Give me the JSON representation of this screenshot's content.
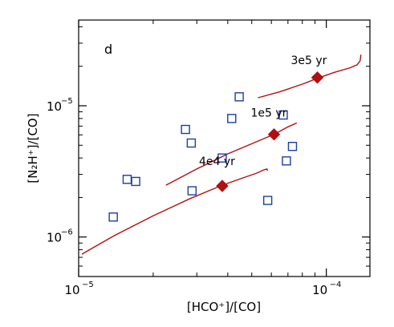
{
  "chart_data": {
    "type": "scatter",
    "panel_label": "d",
    "xlabel": "[HCO⁺]/[CO]",
    "ylabel": "[N₂H⁺]/[CO]",
    "x_scale": "log",
    "y_scale": "log",
    "xlim": [
      1e-05,
      0.00015
    ],
    "ylim": [
      5e-07,
      4.5e-05
    ],
    "x_ticks": [
      {
        "value": 1e-05,
        "mant": "10",
        "exp": "−5"
      },
      {
        "value": 0.0001,
        "mant": "10",
        "exp": "−4"
      }
    ],
    "y_ticks": [
      {
        "value": 1e-06,
        "mant": "10",
        "exp": "−6"
      },
      {
        "value": 1e-05,
        "mant": "10",
        "exp": "−5"
      }
    ],
    "grid": false,
    "observations": {
      "marker": "open-square",
      "color": "#1a3ea6",
      "points": [
        {
          "x": 1.38e-05,
          "y": 1.42e-06
        },
        {
          "x": 1.57e-05,
          "y": 2.75e-06
        },
        {
          "x": 1.7e-05,
          "y": 2.65e-06
        },
        {
          "x": 2.7e-05,
          "y": 6.6e-06
        },
        {
          "x": 2.85e-05,
          "y": 5.2e-06
        },
        {
          "x": 2.87e-05,
          "y": 2.25e-06
        },
        {
          "x": 3.8e-05,
          "y": 4e-06
        },
        {
          "x": 4.15e-05,
          "y": 8e-06
        },
        {
          "x": 4.45e-05,
          "y": 1.17e-05
        },
        {
          "x": 5.8e-05,
          "y": 1.9e-06
        },
        {
          "x": 6.7e-05,
          "y": 8.5e-06
        },
        {
          "x": 6.9e-05,
          "y": 3.8e-06
        },
        {
          "x": 7.3e-05,
          "y": 4.9e-06
        }
      ]
    },
    "model_tracks": {
      "color": "#b01010",
      "series": [
        {
          "name": "4e4 yr",
          "line": [
            {
              "x": 1.03e-05,
              "y": 7.4e-07
            },
            {
              "x": 1.4e-05,
              "y": 1.03e-06
            },
            {
              "x": 2e-05,
              "y": 1.45e-06
            },
            {
              "x": 2.8e-05,
              "y": 1.95e-06
            },
            {
              "x": 3.8e-05,
              "y": 2.48e-06
            },
            {
              "x": 4.6e-05,
              "y": 2.82e-06
            },
            {
              "x": 5.2e-05,
              "y": 3.05e-06
            },
            {
              "x": 5.6e-05,
              "y": 3.25e-06
            },
            {
              "x": 5.75e-05,
              "y": 3.3e-06
            },
            {
              "x": 5.8e-05,
              "y": 3.2e-06
            }
          ],
          "marker": {
            "x": 3.8e-05,
            "y": 2.45e-06
          }
        },
        {
          "name": "1e5 yr",
          "line": [
            {
              "x": 2.25e-05,
              "y": 2.48e-06
            },
            {
              "x": 3e-05,
              "y": 3.3e-06
            },
            {
              "x": 4e-05,
              "y": 4.3e-06
            },
            {
              "x": 5.2e-05,
              "y": 5.3e-06
            },
            {
              "x": 6.2e-05,
              "y": 6.1e-06
            },
            {
              "x": 7e-05,
              "y": 6.9e-06
            },
            {
              "x": 7.6e-05,
              "y": 7.4e-06
            }
          ],
          "marker": {
            "x": 6.15e-05,
            "y": 6.05e-06
          }
        },
        {
          "name": "3e5 yr",
          "line": [
            {
              "x": 5.3e-05,
              "y": 1.15e-05
            },
            {
              "x": 6.5e-05,
              "y": 1.28e-05
            },
            {
              "x": 8e-05,
              "y": 1.46e-05
            },
            {
              "x": 9.2e-05,
              "y": 1.62e-05
            },
            {
              "x": 0.000108,
              "y": 1.8e-05
            },
            {
              "x": 0.000125,
              "y": 1.95e-05
            },
            {
              "x": 0.000133,
              "y": 2.05e-05
            },
            {
              "x": 0.000137,
              "y": 2.2e-05
            },
            {
              "x": 0.000138,
              "y": 2.45e-05
            }
          ],
          "marker": {
            "x": 9.2e-05,
            "y": 1.64e-05
          }
        }
      ]
    }
  }
}
